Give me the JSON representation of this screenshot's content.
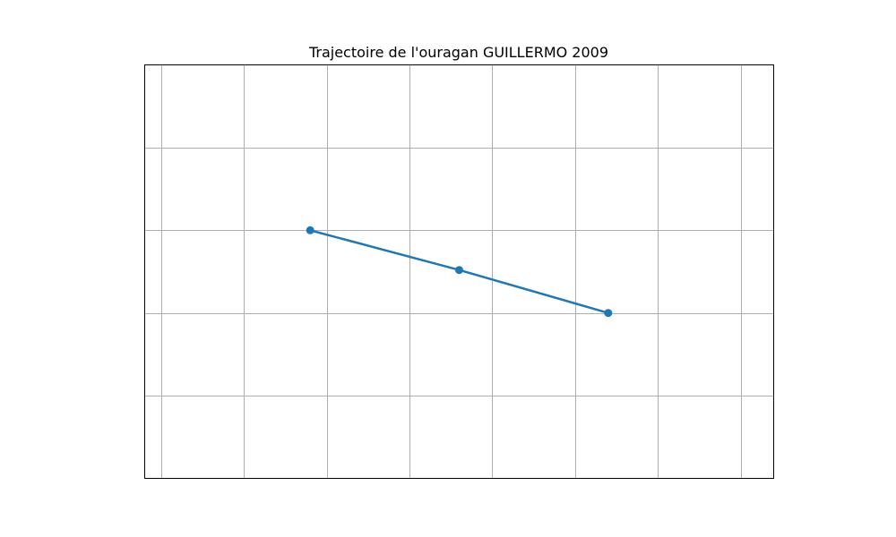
{
  "chart_data": {
    "type": "line",
    "title": "Trajectoire de l'ouragan GUILLERMO 2009",
    "xlabel": "",
    "ylabel": "",
    "xlim": [
      0,
      7.6
    ],
    "ylim": [
      0,
      5
    ],
    "grid": true,
    "grid_x": [
      0.2,
      1.2,
      2.2,
      3.2,
      4.2,
      5.2,
      6.2,
      7.2
    ],
    "grid_y": [
      1,
      2,
      3,
      4
    ],
    "series": [
      {
        "x": [
          2.0,
          3.8,
          5.6
        ],
        "y": [
          3.0,
          2.52,
          2.0
        ],
        "color": "#1f77b4"
      }
    ]
  }
}
